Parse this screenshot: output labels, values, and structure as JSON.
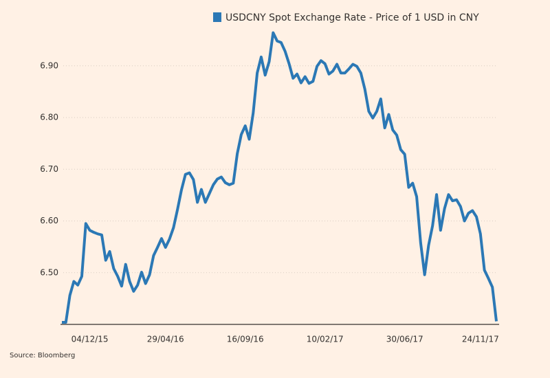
{
  "chart_data": {
    "type": "line",
    "source": "Source: Bloomberg",
    "categories": [
      null,
      null,
      null,
      null,
      null,
      null,
      null,
      "04/12/15",
      null,
      null,
      null,
      null,
      null,
      null,
      null,
      null,
      null,
      null,
      null,
      null,
      null,
      null,
      null,
      null,
      null,
      null,
      "29/04/16",
      null,
      null,
      null,
      null,
      null,
      null,
      null,
      null,
      null,
      null,
      null,
      null,
      null,
      null,
      null,
      null,
      null,
      null,
      null,
      "16/09/16",
      null,
      null,
      null,
      null,
      null,
      null,
      null,
      null,
      null,
      null,
      null,
      null,
      null,
      null,
      null,
      null,
      null,
      null,
      null,
      "10/02/17",
      null,
      null,
      null,
      null,
      null,
      null,
      null,
      null,
      null,
      null,
      null,
      null,
      null,
      null,
      null,
      null,
      null,
      null,
      null,
      "30/06/17",
      null,
      null,
      null,
      null,
      null,
      null,
      null,
      null,
      null,
      null,
      null,
      null,
      null,
      null,
      null,
      null,
      null,
      null,
      "24/11/17",
      null,
      null,
      null,
      null
    ],
    "series": [
      {
        "name": "USDCNY Spot Exchange Rate - Price of 1 USD in CNY",
        "color": "#2b78b5",
        "values": [
          6.404,
          6.404,
          6.456,
          6.483,
          6.476,
          6.493,
          6.595,
          6.582,
          6.578,
          6.575,
          6.573,
          6.524,
          6.541,
          6.508,
          6.493,
          6.474,
          6.516,
          6.483,
          6.464,
          6.476,
          6.501,
          6.479,
          6.496,
          6.533,
          6.549,
          6.566,
          6.549,
          6.565,
          6.587,
          6.622,
          6.66,
          6.69,
          6.693,
          6.68,
          6.636,
          6.661,
          6.636,
          6.653,
          6.67,
          6.681,
          6.685,
          6.674,
          6.67,
          6.673,
          6.73,
          6.767,
          6.784,
          6.758,
          6.809,
          6.886,
          6.917,
          6.882,
          6.908,
          6.964,
          6.948,
          6.945,
          6.928,
          6.904,
          6.876,
          6.884,
          6.867,
          6.879,
          6.866,
          6.87,
          6.899,
          6.91,
          6.904,
          6.884,
          6.89,
          6.903,
          6.886,
          6.886,
          6.894,
          6.903,
          6.899,
          6.886,
          6.855,
          6.812,
          6.799,
          6.812,
          6.836,
          6.78,
          6.806,
          6.776,
          6.766,
          6.738,
          6.729,
          6.665,
          6.673,
          6.647,
          6.558,
          6.496,
          6.553,
          6.591,
          6.651,
          6.582,
          6.624,
          6.651,
          6.639,
          6.641,
          6.628,
          6.6,
          6.615,
          6.62,
          6.608,
          6.575,
          6.505,
          6.489,
          6.472,
          6.406
        ]
      }
    ],
    "ylim": [
      6.4,
      7.0
    ],
    "yticks": [
      {
        "value": 6.5,
        "label": "6.50"
      },
      {
        "value": 6.6,
        "label": "6.60"
      },
      {
        "value": 6.7,
        "label": "6.70"
      },
      {
        "value": 6.8,
        "label": "6.80"
      },
      {
        "value": 6.9,
        "label": "6.90"
      }
    ],
    "grid": true
  }
}
